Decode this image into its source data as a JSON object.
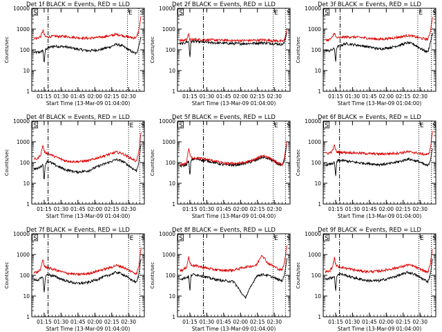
{
  "page": {
    "background": "#ffffff"
  },
  "colors": {
    "events": "#000000",
    "lld": "#dd0000",
    "axis": "#000000"
  },
  "chart_data": [
    {
      "type": "line",
      "detector": "1f",
      "title": "Det 1f BLACK = Events, RED = LLD",
      "ylabel": "Counts/sec",
      "xlabel": "Start Time (13-Mar-09 01:04:00)",
      "yscale": "log",
      "ylim": [
        1,
        10000
      ],
      "ytick_labels": [
        "1",
        "10",
        "100",
        "1000",
        "10000"
      ],
      "x_range": [
        "01:04",
        "02:42"
      ],
      "xtick_labels": [
        "01:15",
        "01:30",
        "01:45",
        "02:00",
        "02:15",
        "02:30"
      ],
      "x": [
        5,
        8,
        10,
        11,
        12,
        14,
        20,
        30,
        40,
        50,
        60,
        70,
        75,
        80,
        85,
        90,
        93,
        95,
        97
      ],
      "series": [
        {
          "key": "events",
          "values": [
            75,
            80,
            95,
            20,
            100,
            125,
            150,
            140,
            110,
            90,
            100,
            140,
            185,
            160,
            110,
            75,
            65,
            150,
            400
          ]
        },
        {
          "key": "lld",
          "values": [
            360,
            450,
            900,
            550,
            430,
            420,
            450,
            440,
            390,
            360,
            400,
            480,
            560,
            500,
            420,
            380,
            390,
            800,
            4000
          ]
        }
      ],
      "markers": [
        {
          "label": "S",
          "x": 1,
          "kind": "box"
        },
        {
          "label": "",
          "x": 14.5,
          "kind": "dash-dot"
        },
        {
          "label": "E",
          "x": 85,
          "kind": "dotted"
        },
        {
          "label": "S",
          "x": 95,
          "kind": "dotted"
        }
      ]
    },
    {
      "type": "line",
      "detector": "2f",
      "title": "Det 2f BLACK = Events, RED = LLD",
      "ylabel": "Counts/sec",
      "xlabel": "Start Time (13-Mar-09 01:04:00)",
      "yscale": "log",
      "ylim": [
        1,
        10000
      ],
      "ytick_labels": [
        "1",
        "10",
        "100",
        "1000",
        "10000"
      ],
      "x_range": [
        "01:04",
        "02:42"
      ],
      "xtick_labels": [
        "01:15",
        "01:30",
        "01:45",
        "02:00",
        "02:15",
        "02:30"
      ],
      "x": [
        5,
        8,
        10,
        11,
        12,
        14,
        20,
        30,
        40,
        50,
        60,
        70,
        75,
        80,
        85,
        90,
        93,
        95,
        97
      ],
      "series": [
        {
          "key": "events",
          "values": [
            200,
            240,
            250,
            40,
            250,
            260,
            240,
            220,
            210,
            200,
            200,
            210,
            220,
            210,
            200,
            190,
            180,
            220,
            700
          ]
        },
        {
          "key": "lld",
          "values": [
            280,
            320,
            550,
            300,
            310,
            320,
            310,
            300,
            290,
            280,
            280,
            290,
            300,
            290,
            280,
            270,
            260,
            290,
            900
          ]
        }
      ],
      "markers": [
        {
          "label": "S",
          "x": 1,
          "kind": "box"
        },
        {
          "label": "",
          "x": 23,
          "kind": "dash-dot"
        },
        {
          "label": "E",
          "x": 85,
          "kind": "dotted"
        },
        {
          "label": "S",
          "x": 96,
          "kind": "dotted"
        }
      ]
    },
    {
      "type": "line",
      "detector": "3f",
      "title": "Det 3f BLACK = Events, RED = LLD",
      "ylabel": "Counts/sec",
      "xlabel": "Start Time (13-Mar-09 01:04:00)",
      "yscale": "log",
      "ylim": [
        1,
        10000
      ],
      "ytick_labels": [
        "1",
        "10",
        "100",
        "1000",
        "10000"
      ],
      "x_range": [
        "01:04",
        "02:42"
      ],
      "xtick_labels": [
        "01:15",
        "01:30",
        "01:45",
        "02:00",
        "02:15",
        "02:30"
      ],
      "x": [
        5,
        8,
        10,
        11,
        12,
        14,
        20,
        30,
        40,
        50,
        60,
        70,
        75,
        80,
        85,
        90,
        93,
        95,
        97
      ],
      "series": [
        {
          "key": "events",
          "values": [
            90,
            100,
            120,
            25,
            130,
            150,
            200,
            170,
            140,
            110,
            130,
            180,
            220,
            190,
            130,
            90,
            80,
            200,
            600
          ]
        },
        {
          "key": "lld",
          "values": [
            300,
            380,
            700,
            420,
            380,
            380,
            420,
            410,
            360,
            320,
            360,
            430,
            500,
            450,
            380,
            340,
            320,
            700,
            3500
          ]
        }
      ],
      "markers": [
        {
          "label": "S",
          "x": 1,
          "kind": "box"
        },
        {
          "label": "",
          "x": 15,
          "kind": "dash-dot"
        },
        {
          "label": "E",
          "x": 84,
          "kind": "dotted"
        },
        {
          "label": "S",
          "x": 96,
          "kind": "dotted"
        }
      ]
    },
    {
      "type": "line",
      "detector": "4f",
      "title": "Det 4f BLACK = Events, RED = LLD",
      "ylabel": "Counts/sec",
      "xlabel": "Start Time (13-Mar-09 01:04:00)",
      "yscale": "log",
      "ylim": [
        1,
        10000
      ],
      "ytick_labels": [
        "1",
        "10",
        "100",
        "1000",
        "10000"
      ],
      "x_range": [
        "01:04",
        "02:42"
      ],
      "xtick_labels": [
        "01:15",
        "01:30",
        "01:45",
        "02:00",
        "02:15",
        "02:30"
      ],
      "x": [
        5,
        8,
        10,
        11,
        12,
        14,
        20,
        30,
        40,
        50,
        60,
        70,
        75,
        80,
        85,
        90,
        93,
        95,
        97
      ],
      "series": [
        {
          "key": "events",
          "values": [
            50,
            65,
            80,
            12,
            85,
            120,
            80,
            45,
            35,
            40,
            70,
            110,
            140,
            120,
            80,
            50,
            40,
            100,
            800
          ]
        },
        {
          "key": "lld",
          "values": [
            150,
            250,
            700,
            350,
            300,
            280,
            200,
            120,
            110,
            120,
            180,
            260,
            320,
            280,
            200,
            140,
            120,
            300,
            2500
          ]
        }
      ],
      "markers": [
        {
          "label": "S",
          "x": 1,
          "kind": "box"
        },
        {
          "label": "",
          "x": 14.5,
          "kind": "dash-dot"
        },
        {
          "label": "E",
          "x": 86,
          "kind": "dotted"
        },
        {
          "label": "S",
          "x": 96,
          "kind": "dotted"
        }
      ]
    },
    {
      "type": "line",
      "detector": "5f",
      "title": "Det 5f BLACK = Events, RED = LLD",
      "ylabel": "Counts/sec",
      "xlabel": "Start Time (13-Mar-09 01:04:00)",
      "yscale": "log",
      "ylim": [
        1,
        10000
      ],
      "ytick_labels": [
        "1",
        "10",
        "100",
        "1000",
        "10000"
      ],
      "x_range": [
        "01:04",
        "02:42"
      ],
      "xtick_labels": [
        "01:15",
        "01:30",
        "01:45",
        "02:00",
        "02:15",
        "02:30"
      ],
      "x": [
        5,
        8,
        10,
        11,
        12,
        14,
        20,
        30,
        40,
        50,
        60,
        70,
        75,
        80,
        85,
        90,
        93,
        95,
        97
      ],
      "series": [
        {
          "key": "events",
          "values": [
            70,
            80,
            120,
            20,
            130,
            150,
            140,
            110,
            80,
            75,
            90,
            130,
            180,
            160,
            120,
            80,
            70,
            120,
            800
          ]
        },
        {
          "key": "lld",
          "values": [
            80,
            100,
            500,
            250,
            170,
            170,
            160,
            130,
            95,
            90,
            100,
            150,
            220,
            190,
            130,
            90,
            80,
            150,
            1000
          ]
        }
      ],
      "markers": [
        {
          "label": "S",
          "x": 1,
          "kind": "box"
        },
        {
          "label": "",
          "x": 23,
          "kind": "dash-dot"
        },
        {
          "label": "E",
          "x": 85,
          "kind": "dotted"
        },
        {
          "label": "S",
          "x": 96,
          "kind": "dotted"
        }
      ]
    },
    {
      "type": "line",
      "detector": "6f",
      "title": "Det 6f BLACK = Events, RED = LLD",
      "ylabel": "Counts/sec",
      "xlabel": "Start Time (13-Mar-09 01:04:00)",
      "yscale": "log",
      "ylim": [
        1,
        10000
      ],
      "ytick_labels": [
        "1",
        "10",
        "100",
        "1000",
        "10000"
      ],
      "x_range": [
        "01:04",
        "02:42"
      ],
      "xtick_labels": [
        "01:15",
        "01:30",
        "01:45",
        "02:00",
        "02:15",
        "02:30"
      ],
      "x": [
        5,
        8,
        10,
        11,
        12,
        14,
        20,
        30,
        40,
        50,
        60,
        70,
        75,
        80,
        85,
        90,
        93,
        95,
        97
      ],
      "series": [
        {
          "key": "events",
          "values": [
            80,
            90,
            100,
            20,
            110,
            130,
            120,
            100,
            90,
            80,
            90,
            120,
            150,
            130,
            110,
            80,
            70,
            120,
            500
          ]
        },
        {
          "key": "lld",
          "values": [
            280,
            350,
            700,
            400,
            330,
            320,
            310,
            290,
            270,
            260,
            270,
            300,
            330,
            310,
            280,
            250,
            240,
            400,
            3000
          ]
        }
      ],
      "markers": [
        {
          "label": "S",
          "x": 1,
          "kind": "box"
        },
        {
          "label": "",
          "x": 14.5,
          "kind": "dash-dot"
        },
        {
          "label": "E",
          "x": 85,
          "kind": "dotted"
        },
        {
          "label": "S",
          "x": 96,
          "kind": "dotted"
        }
      ]
    },
    {
      "type": "line",
      "detector": "7f",
      "title": "Det 7f BLACK = Events, RED = LLD",
      "ylabel": "Counts/sec",
      "xlabel": "Start Time (13-Mar-09 01:04:00)",
      "yscale": "log",
      "ylim": [
        1,
        10000
      ],
      "ytick_labels": [
        "1",
        "10",
        "100",
        "1000",
        "10000"
      ],
      "x_range": [
        "01:04",
        "02:42"
      ],
      "xtick_labels": [
        "01:15",
        "01:30",
        "01:45",
        "02:00",
        "02:15",
        "02:30"
      ],
      "x": [
        5,
        8,
        10,
        11,
        12,
        14,
        20,
        30,
        40,
        50,
        60,
        70,
        75,
        80,
        85,
        90,
        93,
        95,
        97
      ],
      "series": [
        {
          "key": "events",
          "values": [
            60,
            70,
            80,
            12,
            85,
            110,
            90,
            55,
            40,
            45,
            70,
            110,
            140,
            120,
            80,
            55,
            45,
            100,
            700
          ]
        },
        {
          "key": "lld",
          "values": [
            140,
            200,
            600,
            300,
            250,
            230,
            190,
            130,
            110,
            120,
            170,
            240,
            300,
            260,
            190,
            140,
            120,
            250,
            2000
          ]
        }
      ],
      "markers": [
        {
          "label": "S",
          "x": 1,
          "kind": "box"
        },
        {
          "label": "",
          "x": 14.5,
          "kind": "dash-dot"
        },
        {
          "label": "E",
          "x": 86,
          "kind": "dotted"
        },
        {
          "label": "S",
          "x": 96,
          "kind": "dotted"
        }
      ]
    },
    {
      "type": "line",
      "detector": "8f",
      "title": "Det 8f BLACK = Events, RED = LLD",
      "ylabel": "Counts/sec",
      "xlabel": "Start Time (13-Mar-09 01:04:00)",
      "yscale": "log",
      "ylim": [
        1,
        10000
      ],
      "ytick_labels": [
        "1",
        "10",
        "100",
        "1000",
        "10000"
      ],
      "x_range": [
        "01:04",
        "02:42"
      ],
      "xtick_labels": [
        "01:15",
        "01:30",
        "01:45",
        "02:00",
        "02:15",
        "02:30"
      ],
      "x": [
        5,
        8,
        10,
        11,
        12,
        14,
        20,
        30,
        40,
        50,
        60,
        70,
        75,
        80,
        85,
        90,
        93,
        95,
        97
      ],
      "series": [
        {
          "key": "events",
          "values": [
            70,
            80,
            90,
            15,
            100,
            110,
            100,
            70,
            55,
            50,
            8,
            90,
            110,
            100,
            80,
            60,
            55,
            100,
            600
          ]
        },
        {
          "key": "lld",
          "values": [
            180,
            250,
            800,
            400,
            330,
            300,
            260,
            200,
            170,
            180,
            250,
            300,
            1000,
            400,
            280,
            200,
            180,
            400,
            2500
          ]
        }
      ],
      "markers": [
        {
          "label": "S",
          "x": 1,
          "kind": "box"
        },
        {
          "label": "",
          "x": 23,
          "kind": "dash-dot"
        },
        {
          "label": "E",
          "x": 85,
          "kind": "dotted"
        },
        {
          "label": "S",
          "x": 96,
          "kind": "dotted"
        }
      ]
    },
    {
      "type": "line",
      "detector": "9f",
      "title": "Det 9f BLACK = Events, RED = LLD",
      "ylabel": "Counts/sec",
      "xlabel": "Start Time (13-Mar-09 01:04:00)",
      "yscale": "log",
      "ylim": [
        1,
        10000
      ],
      "ytick_labels": [
        "1",
        "10",
        "100",
        "1000",
        "10000"
      ],
      "x_range": [
        "01:04",
        "02:42"
      ],
      "xtick_labels": [
        "01:15",
        "01:30",
        "01:45",
        "02:00",
        "02:15",
        "02:30"
      ],
      "x": [
        5,
        8,
        10,
        11,
        12,
        14,
        20,
        30,
        40,
        50,
        60,
        70,
        75,
        80,
        85,
        90,
        93,
        95,
        97
      ],
      "series": [
        {
          "key": "events",
          "values": [
            70,
            80,
            90,
            15,
            95,
            120,
            100,
            70,
            55,
            55,
            75,
            110,
            140,
            120,
            85,
            60,
            50,
            100,
            600
          ]
        },
        {
          "key": "lld",
          "values": [
            150,
            230,
            700,
            350,
            280,
            260,
            220,
            170,
            150,
            160,
            200,
            260,
            320,
            280,
            210,
            160,
            140,
            300,
            2000
          ]
        }
      ],
      "markers": [
        {
          "label": "S",
          "x": 1,
          "kind": "box"
        },
        {
          "label": "",
          "x": 14.5,
          "kind": "dash-dot"
        },
        {
          "label": "E",
          "x": 85,
          "kind": "dotted"
        },
        {
          "label": "S",
          "x": 96,
          "kind": "dotted"
        }
      ]
    }
  ]
}
